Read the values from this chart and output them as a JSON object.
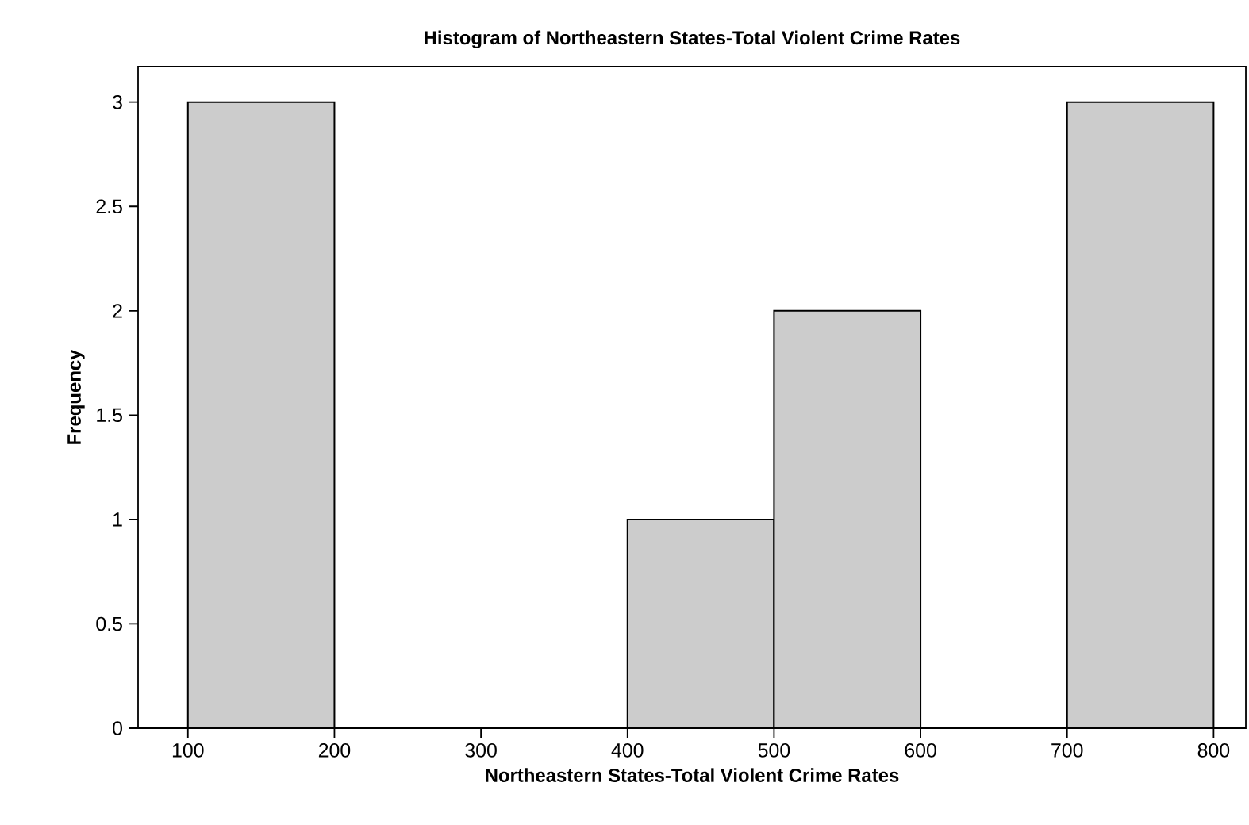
{
  "chart_data": {
    "type": "histogram",
    "title": "Histogram of Northeastern States-Total Violent Crime Rates",
    "xlabel": "Northeastern States-Total Violent Crime Rates",
    "ylabel": "Frequency",
    "bins": [
      100,
      200,
      300,
      400,
      500,
      600,
      700,
      800
    ],
    "values": [
      3,
      0,
      0,
      1,
      2,
      0,
      3
    ],
    "color": "#cccccc",
    "xlim": [
      66,
      822
    ],
    "ylim": [
      0,
      3.17
    ],
    "xticks": [
      100,
      200,
      300,
      400,
      500,
      600,
      700,
      800
    ],
    "yticks": [
      0,
      0.5,
      1,
      1.5,
      2,
      2.5,
      3
    ],
    "grid": false
  }
}
